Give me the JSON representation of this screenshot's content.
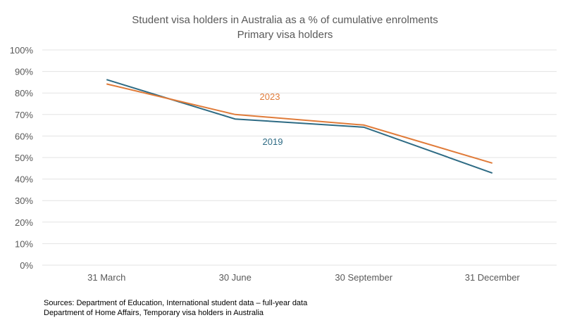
{
  "chart_data": {
    "type": "line",
    "title": "Student visa holders in Australia as a % of cumulative enrolments",
    "subtitle": "Primary visa holders",
    "categories": [
      "31 March",
      "30 June",
      "30 September",
      "31 December"
    ],
    "series": [
      {
        "name": "2019",
        "values": [
          86.2,
          67.9,
          64.1,
          42.8
        ],
        "color": "#2E6B84"
      },
      {
        "name": "2023",
        "values": [
          84.2,
          70.0,
          65.1,
          47.4
        ],
        "color": "#E07B39"
      }
    ],
    "ylim": [
      0,
      100
    ],
    "yticks": [
      "0%",
      "10%",
      "20%",
      "30%",
      "40%",
      "50%",
      "60%",
      "70%",
      "80%",
      "90%",
      "100%"
    ],
    "grid": true,
    "xlabel": "",
    "ylabel": ""
  },
  "sources": [
    "Sources: Department of Education, International student data – full-year data",
    "Department of Home Affairs, Temporary visa holders in Australia"
  ]
}
